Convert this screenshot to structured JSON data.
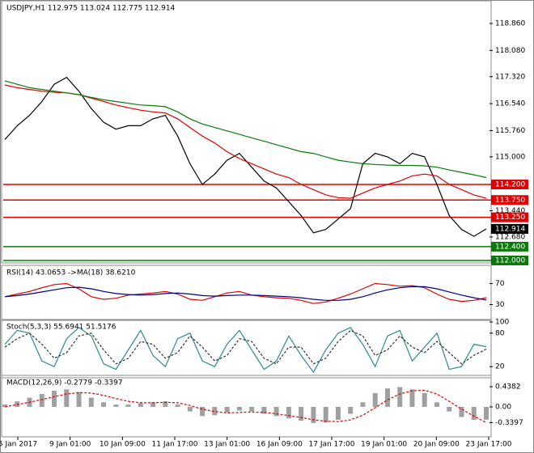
{
  "chart_data": [
    {
      "type": "line",
      "title": "USDJPY,H1  112.975 113.024 112.775 112.914",
      "ylim": [
        111.93,
        119.445
      ],
      "yticks": [
        {
          "value": 118.86,
          "label": "118.860"
        },
        {
          "value": 118.08,
          "label": "118.080"
        },
        {
          "value": 117.32,
          "label": "117.320"
        },
        {
          "value": 116.54,
          "label": "116.540"
        },
        {
          "value": 115.76,
          "label": "115.760"
        },
        {
          "value": 115,
          "label": "115.000"
        },
        {
          "value": 113.44,
          "label": "113.440"
        },
        {
          "value": 112.68,
          "label": "112.680"
        }
      ],
      "levels": [
        {
          "value": 114.2,
          "label": "114.200",
          "color": "#e00000"
        },
        {
          "value": 113.75,
          "label": "113.750",
          "color": "#e00000"
        },
        {
          "value": 113.25,
          "label": "113.250",
          "color": "#e00000"
        },
        {
          "value": 112.4,
          "label": "112.400",
          "color": "#0a7a0a"
        },
        {
          "value": 112,
          "label": "112.000",
          "color": "#0a7a0a"
        }
      ],
      "current": 112.914,
      "series": [
        {
          "color": "#000000",
          "values": [
            115.5,
            115.9,
            116.2,
            116.6,
            117.1,
            117.3,
            116.9,
            116.4,
            116.0,
            115.8,
            115.9,
            115.9,
            116.1,
            116.2,
            115.6,
            114.8,
            114.2,
            114.5,
            114.9,
            115.1,
            114.7,
            114.3,
            114.1,
            113.7,
            113.3,
            112.8,
            112.9,
            113.2,
            113.5,
            114.8,
            115.1,
            115.0,
            114.8,
            115.1,
            115.0,
            114.2,
            113.3,
            112.9,
            112.7,
            112.914
          ]
        },
        {
          "color": "#e00000",
          "values": [
            117.08,
            117.0,
            116.95,
            116.9,
            116.87,
            116.85,
            116.8,
            116.7,
            116.6,
            116.5,
            116.42,
            116.35,
            116.3,
            116.27,
            116.1,
            115.85,
            115.6,
            115.4,
            115.15,
            114.95,
            114.8,
            114.65,
            114.5,
            114.4,
            114.2,
            114.05,
            113.9,
            113.82,
            113.8,
            113.95,
            114.1,
            114.2,
            114.3,
            114.45,
            114.5,
            114.45,
            114.2,
            114.05,
            113.9,
            113.8
          ]
        },
        {
          "color": "#0a7a0a",
          "values": [
            117.2,
            117.1,
            117.0,
            116.95,
            116.9,
            116.85,
            116.8,
            116.72,
            116.65,
            116.6,
            116.55,
            116.5,
            116.48,
            116.45,
            116.3,
            116.1,
            115.95,
            115.85,
            115.75,
            115.65,
            115.55,
            115.45,
            115.35,
            115.25,
            115.15,
            115.1,
            115.0,
            114.9,
            114.85,
            114.8,
            114.78,
            114.76,
            114.75,
            114.75,
            114.74,
            114.7,
            114.62,
            114.55,
            114.48,
            114.4
          ]
        }
      ]
    },
    {
      "type": "line",
      "title": "RSI(14) 43.0653 ->MA(18) 38.6210",
      "ylim": [
        0,
        100
      ],
      "yticks": [
        70,
        30
      ],
      "series": [
        {
          "color": "#e00000",
          "values": [
            45,
            50,
            55,
            62,
            68,
            70,
            60,
            45,
            40,
            42,
            48,
            50,
            52,
            55,
            50,
            40,
            38,
            45,
            52,
            55,
            48,
            45,
            43,
            42,
            38,
            32,
            35,
            42,
            50,
            60,
            70,
            68,
            65,
            66,
            62,
            50,
            40,
            36,
            38,
            43.065
          ]
        },
        {
          "color": "#000080",
          "values": [
            45,
            47,
            50,
            54,
            58,
            62,
            63,
            60,
            55,
            51,
            49,
            48,
            49,
            51,
            52,
            50,
            47,
            46,
            47,
            48,
            48,
            47,
            46,
            45,
            43,
            40,
            38,
            38,
            40,
            45,
            52,
            58,
            62,
            64,
            64,
            60,
            54,
            48,
            43,
            38.621
          ]
        }
      ]
    },
    {
      "type": "line",
      "title": "Stoch(5,3,3) 55.6941 51.5176",
      "ylim": [
        0,
        100
      ],
      "yticks": [
        100,
        80,
        20
      ],
      "series": [
        {
          "color": "#2e8b8b",
          "values": [
            60,
            85,
            80,
            30,
            20,
            70,
            90,
            75,
            25,
            15,
            50,
            85,
            40,
            20,
            70,
            80,
            30,
            20,
            60,
            85,
            50,
            15,
            30,
            75,
            40,
            10,
            50,
            80,
            90,
            60,
            20,
            75,
            85,
            30,
            55,
            80,
            15,
            20,
            60,
            55.694
          ]
        },
        {
          "color": "#333333",
          "dashed": true,
          "values": [
            55,
            70,
            80,
            60,
            35,
            45,
            75,
            80,
            50,
            25,
            35,
            65,
            60,
            35,
            45,
            75,
            55,
            30,
            40,
            70,
            65,
            35,
            25,
            55,
            55,
            25,
            35,
            65,
            85,
            75,
            40,
            50,
            75,
            55,
            45,
            65,
            45,
            25,
            40,
            51.518
          ]
        }
      ]
    },
    {
      "type": "bar",
      "title": "MACD(12,26,9) -0.2779 -0.3397",
      "ylim": [
        -0.649,
        0.631
      ],
      "yticks": [
        0.4382,
        {
          "value": 0,
          "label": "0.00"
        },
        -0.3397
      ],
      "series": [
        {
          "color": "#a0a0a0",
          "values": [
            0.05,
            0.12,
            0.2,
            0.28,
            0.35,
            0.38,
            0.32,
            0.2,
            0.1,
            0.05,
            0.05,
            0.08,
            0.1,
            0.12,
            0.05,
            -0.1,
            -0.2,
            -0.18,
            -0.12,
            -0.08,
            -0.1,
            -0.15,
            -0.2,
            -0.25,
            -0.3,
            -0.35,
            -0.34,
            -0.28,
            -0.15,
            0.1,
            0.3,
            0.4,
            0.43,
            0.38,
            0.3,
            0.1,
            -0.1,
            -0.22,
            -0.28,
            -0.278
          ]
        },
        {
          "color": "#e00000",
          "dashed": true,
          "values": [
            0.0,
            0.05,
            0.1,
            0.16,
            0.22,
            0.28,
            0.31,
            0.3,
            0.25,
            0.18,
            0.12,
            0.09,
            0.09,
            0.1,
            0.09,
            0.03,
            -0.05,
            -0.1,
            -0.13,
            -0.12,
            -0.11,
            -0.12,
            -0.15,
            -0.19,
            -0.23,
            -0.28,
            -0.31,
            -0.32,
            -0.28,
            -0.18,
            -0.02,
            0.15,
            0.28,
            0.35,
            0.36,
            0.28,
            0.12,
            -0.05,
            -0.2,
            -0.34
          ]
        }
      ],
      "xaxis_labels": [
        "5 Jan 2017",
        "9 Jan 01:00",
        "10 Jan 09:00",
        "11 Jan 17:00",
        "13 Jan 01:00",
        "16 Jan 09:00",
        "17 Jan 17:00",
        "19 Jan 01:00",
        "20 Jan 09:00",
        "23 Jan 17:00"
      ]
    }
  ]
}
